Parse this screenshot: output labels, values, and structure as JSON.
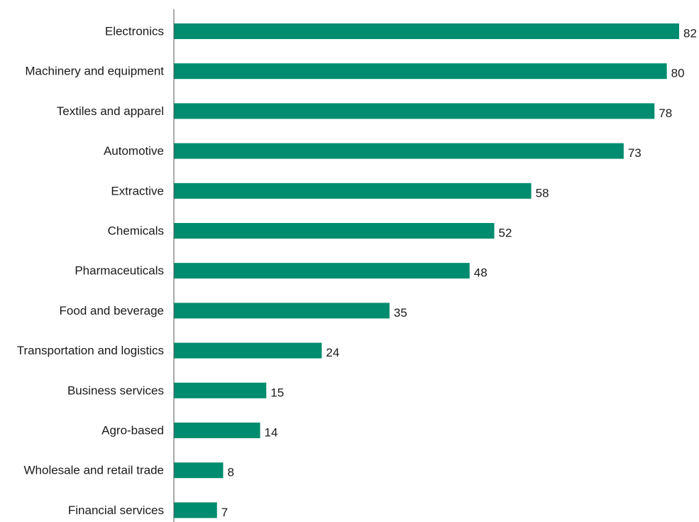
{
  "chart_data": {
    "type": "bar",
    "orientation": "horizontal",
    "title": "",
    "xlabel": "",
    "ylabel": "",
    "categories": [
      "Electronics",
      "Machinery and equipment",
      "Textiles and apparel",
      "Automotive",
      "Extractive",
      "Chemicals",
      "Pharmaceuticals",
      "Food and beverage",
      "Transportation and logistics",
      "Business services",
      "Agro-based",
      "Wholesale and retail trade",
      "Financial services"
    ],
    "values": [
      82,
      80,
      78,
      73,
      58,
      52,
      48,
      35,
      24,
      15,
      14,
      8,
      7
    ],
    "xlim": [
      0,
      82
    ],
    "grid": false,
    "legend": "none",
    "bar_color": "#008c6e",
    "axis_color": "#555555"
  }
}
